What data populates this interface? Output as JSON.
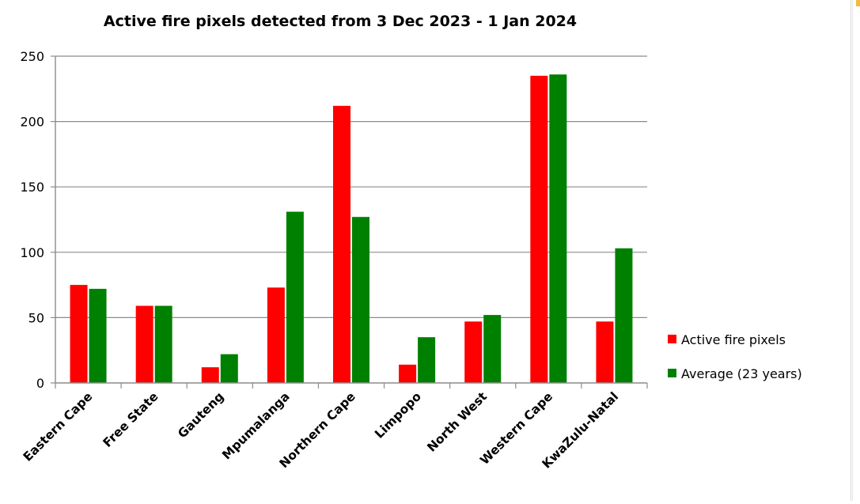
{
  "chart_data": {
    "type": "bar",
    "title": "Active fire pixels detected from 3 Dec 2023 - 1 Jan 2024",
    "xlabel": "",
    "ylabel": "",
    "categories": [
      "Eastern Cape",
      "Free State",
      "Gauteng",
      "Mpumalanga",
      "Northern Cape",
      "Limpopo",
      "North West",
      "Western Cape",
      "KwaZulu-Natal"
    ],
    "series": [
      {
        "name": "Active fire pixels",
        "color": "#ff0000",
        "values": [
          75,
          59,
          12,
          73,
          212,
          14,
          47,
          235,
          47
        ]
      },
      {
        "name": "Average (23 years)",
        "color": "#008000",
        "values": [
          72,
          59,
          22,
          131,
          127,
          35,
          52,
          236,
          103
        ]
      }
    ],
    "ylim": [
      0,
      250
    ],
    "yticks": [
      0,
      50,
      100,
      150,
      200,
      250
    ],
    "grid": true,
    "legend_position": "right"
  }
}
